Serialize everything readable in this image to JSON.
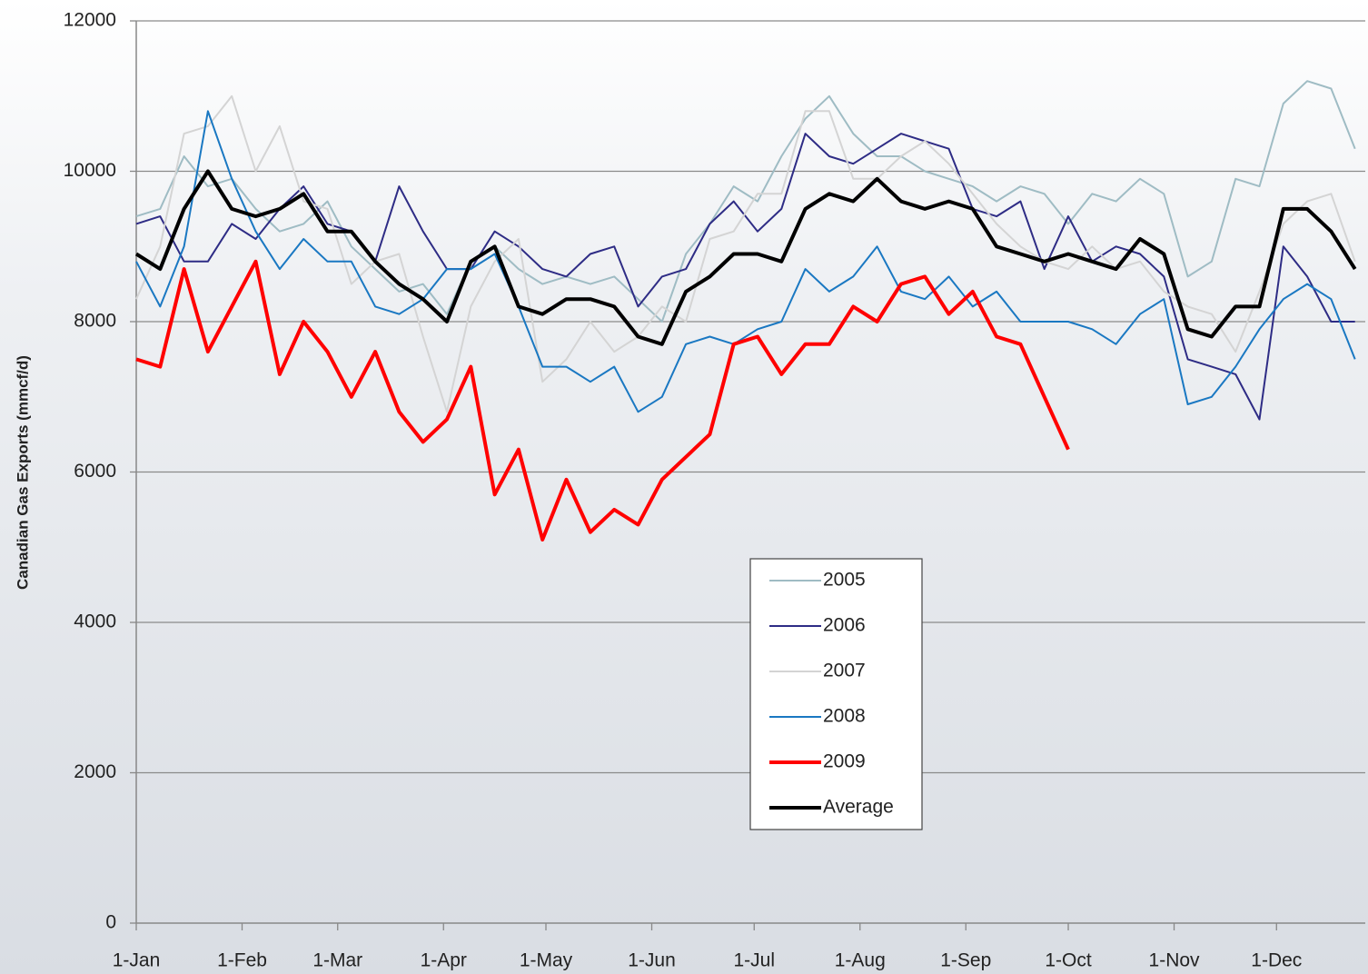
{
  "chart_data": {
    "type": "line",
    "y_label": "Canadian Gas Exports (mmcf/d)",
    "x": [
      1,
      8,
      15,
      22,
      29,
      36,
      43,
      50,
      57,
      64,
      71,
      78,
      85,
      92,
      99,
      106,
      113,
      120,
      127,
      134,
      141,
      148,
      155,
      162,
      169,
      176,
      183,
      190,
      197,
      204,
      211,
      218,
      225,
      232,
      239,
      246,
      253,
      260,
      267,
      274,
      281,
      288,
      295,
      302,
      309,
      316,
      323,
      330,
      337,
      344,
      351,
      358
    ],
    "xlim": [
      1,
      361
    ],
    "xticks": [
      {
        "value": 1,
        "label": "1-Jan"
      },
      {
        "value": 32,
        "label": "1-Feb"
      },
      {
        "value": 60,
        "label": "1-Mar"
      },
      {
        "value": 91,
        "label": "1-Apr"
      },
      {
        "value": 121,
        "label": "1-May"
      },
      {
        "value": 152,
        "label": "1-Jun"
      },
      {
        "value": 182,
        "label": "1-Jul"
      },
      {
        "value": 213,
        "label": "1-Aug"
      },
      {
        "value": 244,
        "label": "1-Sep"
      },
      {
        "value": 274,
        "label": "1-Oct"
      },
      {
        "value": 305,
        "label": "1-Nov"
      },
      {
        "value": 335,
        "label": "1-Dec"
      }
    ],
    "ylim": [
      0,
      12000
    ],
    "yticks": [
      0,
      2000,
      4000,
      6000,
      8000,
      10000,
      12000
    ],
    "grid": true,
    "legend": "center",
    "series": [
      {
        "name": "2005",
        "color": "#9fbcc4",
        "width": 2,
        "values": [
          9400,
          9500,
          10200,
          9800,
          9900,
          9500,
          9200,
          9300,
          9600,
          9000,
          8700,
          8400,
          8500,
          8100,
          8800,
          9000,
          8700,
          8500,
          8600,
          8500,
          8600,
          8300,
          8000,
          8900,
          9300,
          9800,
          9600,
          10200,
          10700,
          11000,
          10500,
          10200,
          10200,
          10000,
          9900,
          9800,
          9600,
          9800,
          9700,
          9300,
          9700,
          9600,
          9900,
          9700,
          8600,
          8800,
          9900,
          9800,
          10900,
          11200,
          11100,
          10300
        ]
      },
      {
        "name": "2006",
        "color": "#2e2c85",
        "width": 2,
        "values": [
          9300,
          9400,
          8800,
          8800,
          9300,
          9100,
          9500,
          9800,
          9300,
          9200,
          8800,
          9800,
          9200,
          8700,
          8700,
          9200,
          9000,
          8700,
          8600,
          8900,
          9000,
          8200,
          8600,
          8700,
          9300,
          9600,
          9200,
          9500,
          10500,
          10200,
          10100,
          10300,
          10500,
          10400,
          10300,
          9500,
          9400,
          9600,
          8700,
          9400,
          8800,
          9000,
          8900,
          8600,
          7500,
          7400,
          7300,
          6700,
          9000,
          8600,
          8000,
          8000
        ]
      },
      {
        "name": "2007",
        "color": "#d4d4d4",
        "width": 2,
        "values": [
          8300,
          9000,
          10500,
          10600,
          11000,
          10000,
          10600,
          9600,
          9500,
          8500,
          8800,
          8900,
          7800,
          6800,
          8200,
          8800,
          9100,
          7200,
          7500,
          8000,
          7600,
          7800,
          8200,
          8000,
          9100,
          9200,
          9700,
          9700,
          10800,
          10800,
          9900,
          9900,
          10200,
          10400,
          10100,
          9700,
          9300,
          9000,
          8800,
          8700,
          9000,
          8700,
          8800,
          8400,
          8200,
          8100,
          7600,
          8400,
          9300,
          9600,
          9700,
          8800
        ]
      },
      {
        "name": "2008",
        "color": "#1a78c2",
        "width": 2,
        "values": [
          8800,
          8200,
          9000,
          10800,
          9900,
          9200,
          8700,
          9100,
          8800,
          8800,
          8200,
          8100,
          8300,
          8700,
          8700,
          8900,
          8200,
          7400,
          7400,
          7200,
          7400,
          6800,
          7000,
          7700,
          7800,
          7700,
          7900,
          8000,
          8700,
          8400,
          8600,
          9000,
          8400,
          8300,
          8600,
          8200,
          8400,
          8000,
          8000,
          8000,
          7900,
          7700,
          8100,
          8300,
          6900,
          7000,
          7400,
          7900,
          8300,
          8500,
          8300,
          7500
        ]
      },
      {
        "name": "2009",
        "color": "#ff0000",
        "width": 4,
        "values": [
          7500,
          7400,
          8700,
          7600,
          8200,
          8800,
          7300,
          8000,
          7600,
          7000,
          7600,
          6800,
          6400,
          6700,
          7400,
          5700,
          6300,
          5100,
          5900,
          5200,
          5500,
          5300,
          5900,
          6200,
          6500,
          7700,
          7800,
          7300,
          7700,
          7700,
          8200,
          8000,
          8500,
          8600,
          8100,
          8400,
          7800,
          7700,
          7000,
          6300,
          null,
          null,
          null,
          null,
          null,
          null,
          null,
          null,
          null,
          null,
          null,
          null
        ]
      },
      {
        "name": "Average",
        "color": "#000000",
        "width": 4,
        "values": [
          8900,
          8700,
          9500,
          10000,
          9500,
          9400,
          9500,
          9700,
          9200,
          9200,
          8800,
          8500,
          8300,
          8000,
          8800,
          9000,
          8200,
          8100,
          8300,
          8300,
          8200,
          7800,
          7700,
          8400,
          8600,
          8900,
          8900,
          8800,
          9500,
          9700,
          9600,
          9900,
          9600,
          9500,
          9600,
          9500,
          9000,
          8900,
          8800,
          8900,
          8800,
          8700,
          9100,
          8900,
          7900,
          7800,
          8200,
          8200,
          9500,
          9500,
          9200,
          8700
        ]
      }
    ]
  }
}
